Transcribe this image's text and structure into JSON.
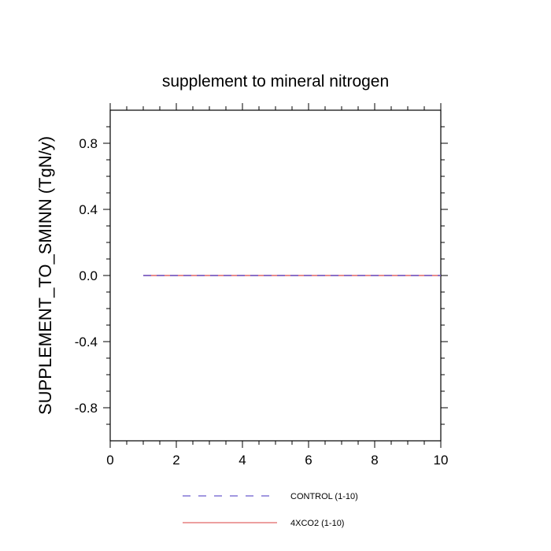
{
  "chart_data": {
    "type": "line",
    "title": "supplement to mineral nitrogen",
    "xlabel": "",
    "ylabel": "SUPPLEMENT_TO_SMINN  (TgN/y)",
    "xlim": [
      0,
      10
    ],
    "ylim": [
      -1.0,
      1.0
    ],
    "x_ticks": [
      0,
      2,
      4,
      6,
      8,
      10
    ],
    "x_tick_labels": [
      "0",
      "2",
      "4",
      "6",
      "8",
      "10"
    ],
    "y_ticks": [
      0.8,
      0.4,
      0.0,
      -0.4,
      -0.8
    ],
    "y_tick_labels": [
      "0.8",
      "0.4",
      "0.0",
      "-0.4",
      "-0.8"
    ],
    "grid": false,
    "legend_position": "bottom",
    "x": [
      1,
      2,
      3,
      4,
      5,
      6,
      7,
      8,
      9,
      10
    ],
    "series": [
      {
        "name": "CONTROL (1-10)",
        "values": [
          0,
          0,
          0,
          0,
          0,
          0,
          0,
          0,
          0,
          0
        ],
        "color": "#6a5acd",
        "style": "dashed"
      },
      {
        "name": "4XCO2 (1-10)",
        "values": [
          0,
          0,
          0,
          0,
          0,
          0,
          0,
          0,
          0,
          0
        ],
        "color": "#e06666",
        "style": "solid"
      }
    ]
  }
}
